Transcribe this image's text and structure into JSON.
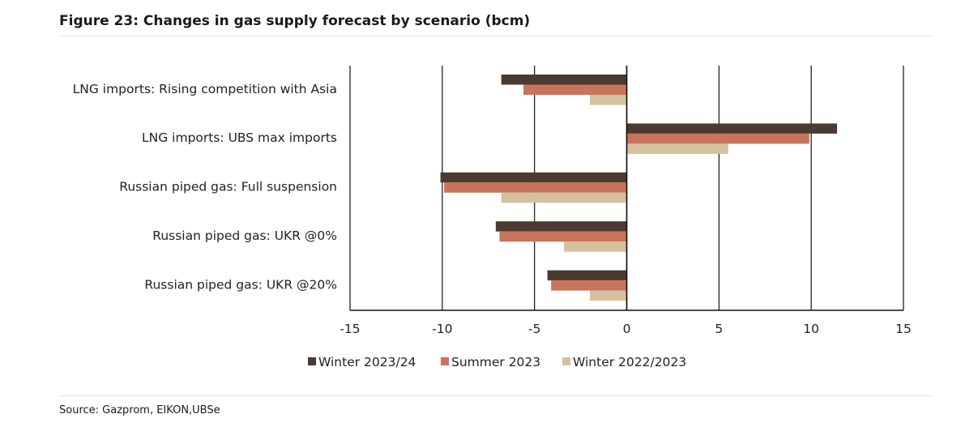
{
  "title": "Figure 23: Changes in gas supply forecast by scenario (bcm)",
  "source": "Source: Gazprom, EIKON,UBSe",
  "colors": {
    "winter_2023_24": "#4b3a30",
    "summer_2023": "#c8745a",
    "winter_2022_23": "#d4c1a0",
    "axis": "#111111"
  },
  "chart_data": {
    "type": "bar",
    "orientation": "horizontal",
    "categories": [
      "LNG imports: Rising competition with Asia",
      "LNG imports: UBS max imports",
      "Russian piped gas: Full suspension",
      "Russian piped gas: UKR @0%",
      "Russian piped gas: UKR @20%"
    ],
    "series": [
      {
        "name": "Winter 2023/24",
        "color": "#4b3a30",
        "values": [
          -6.8,
          11.4,
          -10.1,
          -7.1,
          -4.3
        ]
      },
      {
        "name": "Summer 2023",
        "color": "#c8745a",
        "values": [
          -5.6,
          9.9,
          -9.9,
          -6.9,
          -4.1
        ]
      },
      {
        "name": "Winter 2022/2023",
        "color": "#d4c1a0",
        "values": [
          -2.0,
          5.5,
          -6.8,
          -3.4,
          -2.0
        ]
      }
    ],
    "xlim": [
      -15,
      15
    ],
    "xticks": [
      "-15",
      "-10",
      "-5",
      "0",
      "5",
      "10",
      "15"
    ],
    "grid": "vertical",
    "legend": "bottom"
  }
}
